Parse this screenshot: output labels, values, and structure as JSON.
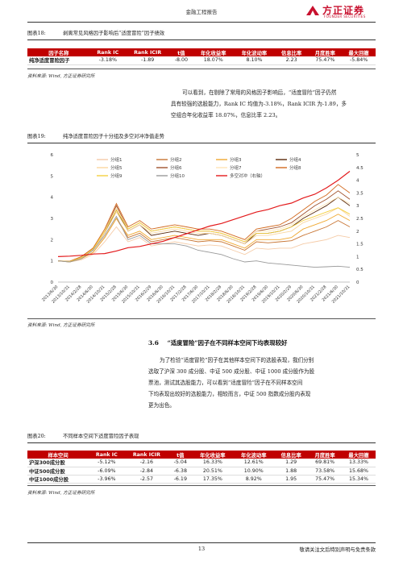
{
  "header": {
    "title": "金融工程报告",
    "logo_cn": "方正证券",
    "logo_en": "FOUNDER SECURITIES"
  },
  "fig18": {
    "label": "图表18:",
    "title": "剥离常见风格因子影响后“适度冒险”因子绩效",
    "headers": [
      "因子名称",
      "Rank IC",
      "Rank ICIR",
      "t值",
      "年化收益率",
      "年化波动率",
      "信息比率",
      "月度胜率",
      "最大回撤"
    ],
    "rows": [
      [
        "纯净适度冒险因子",
        "-3.18%",
        "-1.89",
        "-8.00",
        "18.07%",
        "8.10%",
        "2.23",
        "75.47%",
        "-5.84%"
      ]
    ],
    "source": "资料来源: Wind, 方正证券研究所"
  },
  "paragraph1": [
    "可以看到，在剔除了常用的风格因子影响后，“适度冒险”因子仍然",
    "具有较强的选股能力，Rank IC 均值为-3.18%，Rank ICIR 为-1.89，多",
    "空组合年化收益率 18.07%，信息比率 2.23。"
  ],
  "fig19": {
    "label": "图表19:",
    "title": "纯净适度冒险因子十分组及多空对冲净值走势",
    "source": "资料来源: Wind, 方正证券研究所"
  },
  "chart_data": {
    "type": "line",
    "title": "纯净适度冒险因子十分组及多空对冲净值走势",
    "x_ticks": [
      "2013/6/30",
      "2013/10/31",
      "2014/2/28",
      "2014/6/30",
      "2014/10/31",
      "2015/2/28",
      "2015/6/30",
      "2015/10/31",
      "2016/2/29",
      "2016/6/30",
      "2016/10/31",
      "2017/2/28",
      "2017/6/30",
      "2017/10/31",
      "2018/2/28",
      "2018/6/30",
      "2018/10/31",
      "2019/2/28",
      "2019/6/30",
      "2019/10/31",
      "2020/2/29",
      "2020/6/30",
      "2020/10/31",
      "2021/2/28",
      "2021/6/30",
      "2021/10/31"
    ],
    "ylim_left": [
      0,
      6
    ],
    "yticks_left": [
      0,
      1,
      2,
      3,
      4,
      5,
      6
    ],
    "ylim_right": [
      0,
      5
    ],
    "yticks_right": [
      0,
      0.5,
      1,
      1.5,
      2,
      2.5,
      3,
      3.5,
      4,
      4.5,
      5
    ],
    "legend_position": "top",
    "series": [
      {
        "name": "分组1",
        "axis": "left",
        "color": "#f5cba7",
        "values": [
          1.0,
          0.95,
          1.05,
          1.3,
          1.9,
          2.6,
          1.9,
          2.1,
          1.7,
          1.8,
          1.9,
          1.8,
          1.7,
          1.75,
          1.7,
          1.5,
          1.3,
          1.6,
          1.55,
          1.6,
          1.6,
          1.8,
          1.9,
          2.0,
          2.2,
          2.1
        ]
      },
      {
        "name": "分组2",
        "axis": "left",
        "color": "#c87533",
        "values": [
          1.0,
          0.95,
          1.1,
          1.4,
          2.1,
          3.0,
          2.1,
          2.3,
          1.9,
          2.0,
          2.1,
          2.0,
          1.9,
          1.95,
          1.9,
          1.7,
          1.5,
          1.9,
          1.85,
          1.9,
          1.95,
          2.2,
          2.4,
          2.6,
          2.9,
          2.6
        ]
      },
      {
        "name": "分组3",
        "axis": "left",
        "color": "#f0a830",
        "values": [
          1.0,
          0.96,
          1.1,
          1.4,
          2.1,
          3.0,
          2.2,
          2.4,
          2.0,
          2.1,
          2.2,
          2.1,
          2.0,
          2.0,
          2.0,
          1.8,
          1.6,
          2.0,
          2.0,
          2.0,
          2.1,
          2.5,
          2.7,
          2.9,
          3.2,
          2.9
        ]
      },
      {
        "name": "分组4",
        "axis": "left",
        "color": "#5a2a0a",
        "values": [
          1.0,
          0.97,
          1.15,
          1.5,
          2.3,
          3.4,
          2.4,
          2.7,
          2.2,
          2.3,
          2.4,
          2.3,
          2.2,
          2.3,
          2.2,
          2.0,
          1.8,
          2.3,
          2.3,
          2.4,
          2.6,
          3.0,
          3.3,
          3.6,
          4.0,
          3.6
        ]
      },
      {
        "name": "分组5",
        "axis": "left",
        "color": "#fad7a0",
        "values": [
          1.0,
          0.97,
          1.15,
          1.5,
          2.3,
          3.3,
          2.4,
          2.7,
          2.3,
          2.4,
          2.5,
          2.4,
          2.3,
          2.3,
          2.2,
          2.0,
          1.8,
          2.2,
          2.2,
          2.3,
          2.4,
          2.8,
          3.0,
          3.2,
          3.5,
          3.1
        ]
      },
      {
        "name": "分组6",
        "axis": "left",
        "color": "#a0522d",
        "values": [
          1.0,
          0.98,
          1.2,
          1.6,
          2.4,
          3.6,
          2.5,
          2.8,
          2.4,
          2.5,
          2.6,
          2.5,
          2.4,
          2.4,
          2.3,
          2.1,
          1.9,
          2.4,
          2.5,
          2.6,
          2.8,
          3.2,
          3.6,
          3.9,
          4.3,
          3.9
        ]
      },
      {
        "name": "分组7",
        "axis": "left",
        "color": "#ffe4b5",
        "values": [
          1.0,
          0.98,
          1.2,
          1.6,
          2.4,
          3.5,
          2.5,
          2.8,
          2.4,
          2.5,
          2.6,
          2.5,
          2.4,
          2.4,
          2.3,
          2.1,
          1.9,
          2.4,
          2.4,
          2.5,
          2.7,
          3.1,
          3.4,
          3.7,
          4.0,
          3.7
        ]
      },
      {
        "name": "分组8",
        "axis": "left",
        "color": "#d2691e",
        "values": [
          1.0,
          0.98,
          1.2,
          1.6,
          2.5,
          3.7,
          2.6,
          2.9,
          2.5,
          2.6,
          2.7,
          2.6,
          2.5,
          2.5,
          2.4,
          2.2,
          2.0,
          2.5,
          2.6,
          2.7,
          3.0,
          3.4,
          3.8,
          4.1,
          4.6,
          4.2
        ]
      },
      {
        "name": "分组9",
        "axis": "left",
        "color": "#f4d03f",
        "values": [
          1.0,
          0.97,
          1.15,
          1.55,
          2.4,
          3.4,
          2.5,
          2.8,
          2.4,
          2.5,
          2.6,
          2.5,
          2.4,
          2.4,
          2.3,
          2.1,
          1.9,
          2.3,
          2.3,
          2.4,
          2.6,
          2.9,
          3.1,
          3.3,
          3.5,
          3.2
        ]
      },
      {
        "name": "分组10",
        "axis": "left",
        "color": "#999999",
        "values": [
          1.0,
          0.95,
          1.1,
          1.5,
          2.2,
          3.1,
          2.0,
          2.2,
          1.8,
          1.8,
          1.8,
          1.7,
          1.5,
          1.4,
          1.3,
          1.1,
          0.95,
          1.0,
          0.9,
          0.85,
          0.8,
          0.75,
          0.7,
          0.72,
          0.75,
          0.7
        ]
      },
      {
        "name": "多空对冲（右轴）",
        "axis": "right",
        "color": "#e31a1c",
        "values": [
          1.0,
          1.02,
          1.05,
          1.1,
          1.12,
          1.22,
          1.35,
          1.4,
          1.5,
          1.6,
          1.75,
          1.9,
          2.05,
          2.2,
          2.3,
          2.45,
          2.6,
          2.75,
          2.85,
          3.0,
          3.1,
          3.3,
          3.45,
          3.7,
          4.0,
          4.35
        ]
      }
    ]
  },
  "section": {
    "number": "3.6",
    "title": "“适度冒险”因子在不同样本空间下均表现较好"
  },
  "paragraph2": [
    "为了检验“适度冒险”因子在其他样本空间下的选股表现，我们分别",
    "选取了沪深 300 成分股、中证 500 成分股、中证 1000 成分股作为股",
    "票池，测试其选股能力，可以看到“适度冒险”因子在不同样本空间",
    "下均表现出较好的选股能力，相较而言，中证 500 指数成分股内表现",
    "更为出色。"
  ],
  "fig20": {
    "label": "图表20:",
    "title": "不同样本空间下适度冒险因子表现",
    "headers": [
      "样本空间",
      "Rank IC",
      "Rank ICIR",
      "t值",
      "年化收益率",
      "年化波动率",
      "信息比率",
      "月度胜率",
      "最大回撤"
    ],
    "rows": [
      [
        "沪深300成分股",
        "-5.12%",
        "-2.16",
        "-5.04",
        "16.33%",
        "12.61%",
        "1.29",
        "69.81%",
        "13.33%"
      ],
      [
        "中证500成分股",
        "-6.09%",
        "-2.84",
        "-6.38",
        "20.51%",
        "10.90%",
        "1.88",
        "73.58%",
        "15.68%"
      ],
      [
        "中证1000成分股",
        "-3.96%",
        "-2.57",
        "-6.19",
        "17.35%",
        "8.92%",
        "1.95",
        "75.47%",
        "15.34%"
      ]
    ],
    "source": "资料来源: Wind, 方正证券研究所"
  },
  "footer": {
    "page": "13",
    "disclaimer": "敬请关注文后特别声明与免责条款"
  }
}
